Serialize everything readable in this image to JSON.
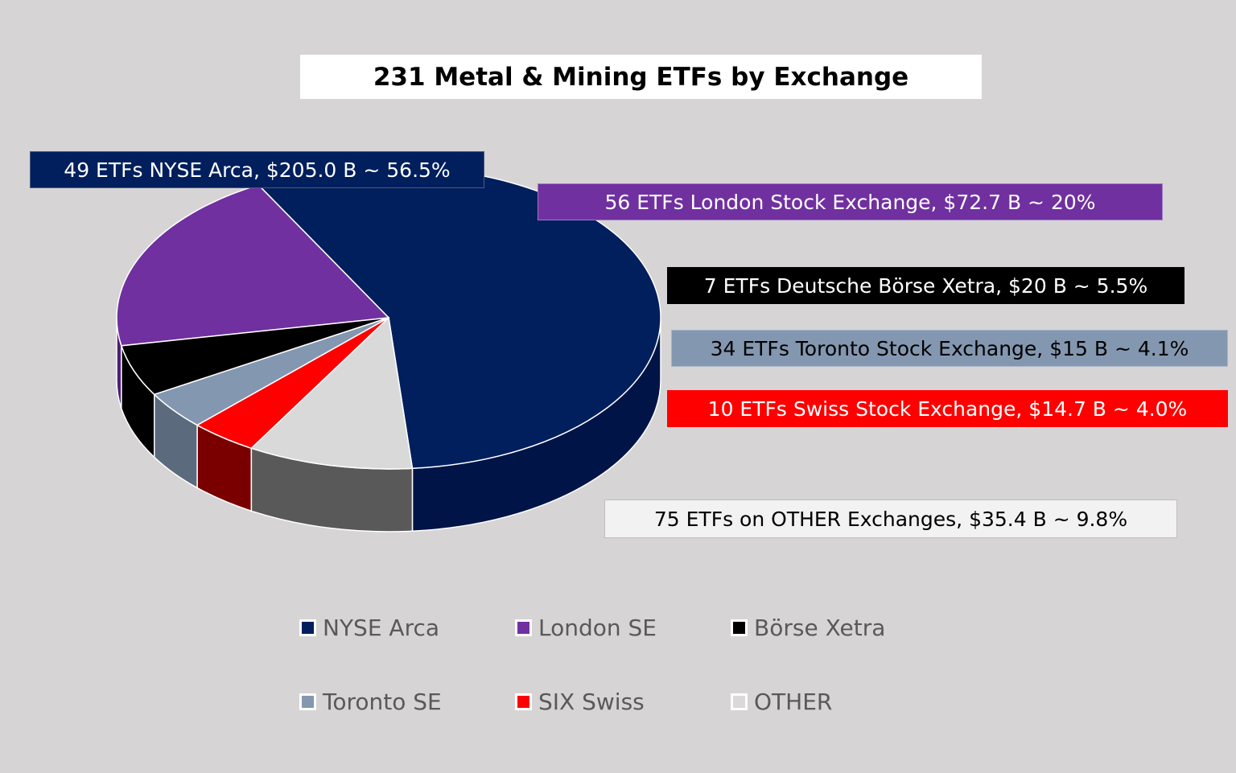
{
  "chart_data": {
    "type": "pie",
    "title": "231 Metal & Mining ETFs by Exchange",
    "slices": [
      {
        "name": "NYSE Arca",
        "value": 56.5,
        "label": "49 ETFs NYSE Arca, $205.0 B ~ 56.5%",
        "color": "#001f5c",
        "side_color": "#001447"
      },
      {
        "name": "London SE",
        "value": 20,
        "label": "56 ETFs London Stock Exchange, $72.7 B ~ 20%",
        "color": "#7030a0",
        "side_color": "#4e1f72"
      },
      {
        "name": "Börse Xetra",
        "value": 5.5,
        "label": "7 ETFs Deutsche Börse Xetra, $20 B ~ 5.5%",
        "color": "#000000",
        "side_color": "#000000"
      },
      {
        "name": "Toronto SE",
        "value": 4.1,
        "label": "34 ETFs Toronto Stock Exchange, $15 B ~ 4.1%",
        "color": "#8497b0",
        "side_color": "#5b6a7d"
      },
      {
        "name": "SIX Swiss",
        "value": 4.0,
        "label": "10 ETFs Swiss Stock Exchange, $14.7 B ~ 4.0%",
        "color": "#ff0000",
        "side_color": "#7a0000"
      },
      {
        "name": "OTHER",
        "value": 9.8,
        "label": "75 ETFs on OTHER Exchanges, $35.4 B ~ 9.8%",
        "color": "#d9d9d9",
        "side_color": "#595959"
      }
    ],
    "legend_position": "bottom"
  }
}
